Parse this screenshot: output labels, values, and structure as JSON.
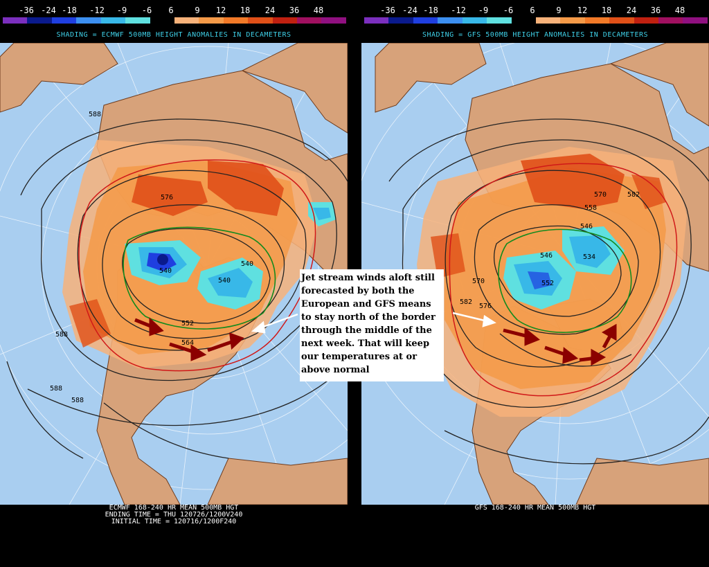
{
  "legend": {
    "labels": [
      "-36",
      "-24",
      "-18",
      "-12",
      "-9",
      "-6",
      "6",
      "9",
      "12",
      "18",
      "24",
      "36",
      "48"
    ],
    "colors": [
      "#7b2fbe",
      "#0a1a8c",
      "#1f3fe0",
      "#3c8ff0",
      "#38b8e8",
      "#5fe0e0",
      "#000000",
      "#f7b27a",
      "#f59a48",
      "#f27a28",
      "#e05018",
      "#c02010",
      "#a01060",
      "#901080"
    ]
  },
  "left": {
    "shading_title": "SHADING = ECMWF 500MB HEIGHT ANOMALIES IN DECAMETERS",
    "footer": "ECMWF 168-240 HR MEAN 500MB HGT\nENDING TIME = THU 120726/1200V240\nINITIAL TIME = 120716/1200F240",
    "contour_labels": [
      "588",
      "588",
      "588",
      "588",
      "540",
      "540",
      "540",
      "564",
      "552",
      "576"
    ]
  },
  "right": {
    "shading_title": "SHADING = GFS 500MB HEIGHT ANOMALIES IN DECAMETERS",
    "footer": "GFS 168-240 HR MEAN 500MB HGT",
    "contour_labels": [
      "570",
      "582",
      "558",
      "546",
      "546",
      "534",
      "552",
      "576",
      "582",
      "570"
    ]
  },
  "annotation": {
    "text": "Jet stream winds aloft still forecasted by both the European and GFS means to stay north of the border through the middle of the next week. That will keep our temperatures at or above normal"
  },
  "colors": {
    "ocean": "#a9cef0",
    "land": "#d7a27a",
    "coast": "#6e3b1c",
    "title_cyan": "#3fd0e8"
  }
}
